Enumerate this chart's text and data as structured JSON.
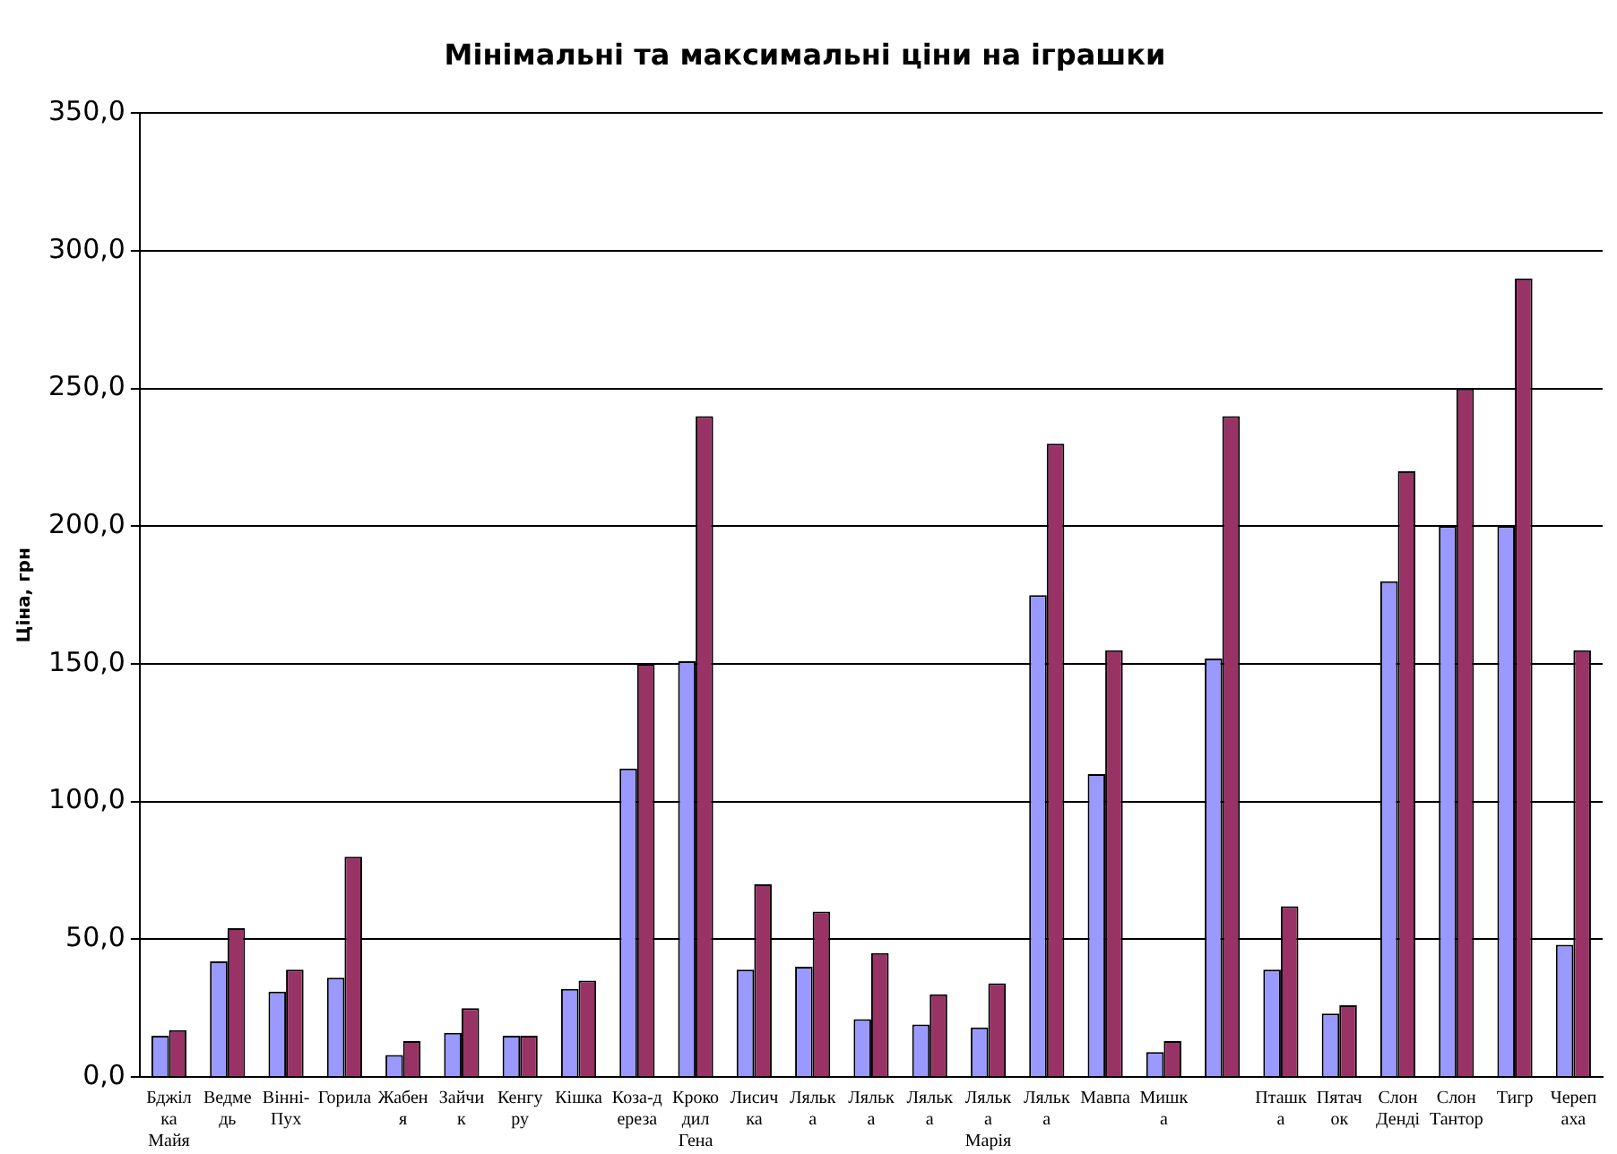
{
  "chart_data": {
    "type": "bar",
    "title": "Мінімальні та максимальні ціни на іграшки",
    "ylabel": "Ціна, грн",
    "categories": [
      "Бджілка Майя",
      "Ведмедь",
      "Вінні-Пух",
      "Горила",
      "Жабеня",
      "Зайчик",
      "Кенгуру",
      "Кішка",
      "Коза-дереза",
      "Крокодил Гена",
      "Лисичка",
      "Лялька",
      "Лялька",
      "Лялька",
      "Лялька Марія",
      "Лялька",
      "Мавпа",
      "Мишка",
      null,
      "Пташка",
      "Пятачок",
      "Слон Денді",
      "Слон Тантор",
      "Тигр",
      "Черепаха"
    ],
    "series": [
      {
        "color": "#9999ff",
        "values": [
          15,
          42,
          31,
          36,
          8,
          16,
          15,
          32,
          112,
          151,
          39,
          40,
          21,
          19,
          18,
          175,
          110,
          9,
          152,
          39,
          23,
          180,
          200,
          200,
          48
        ]
      },
      {
        "color": "#993366",
        "values": [
          17,
          54,
          39,
          80,
          13,
          25,
          15,
          35,
          150,
          240,
          70,
          60,
          45,
          30,
          34,
          230,
          155,
          13,
          240,
          62,
          26,
          220,
          250,
          290,
          155
        ]
      }
    ],
    "ylim": [
      0,
      350
    ],
    "yticks": [
      {
        "value": 0,
        "label": "0,0"
      },
      {
        "value": 50,
        "label": "50,0"
      },
      {
        "value": 100,
        "label": "100,0"
      },
      {
        "value": 150,
        "label": "150,0"
      },
      {
        "value": 200,
        "label": "200,0"
      },
      {
        "value": 250,
        "label": "250,0"
      },
      {
        "value": 300,
        "label": "300,0"
      },
      {
        "value": 350,
        "label": "350,0"
      }
    ],
    "grid": "y"
  }
}
